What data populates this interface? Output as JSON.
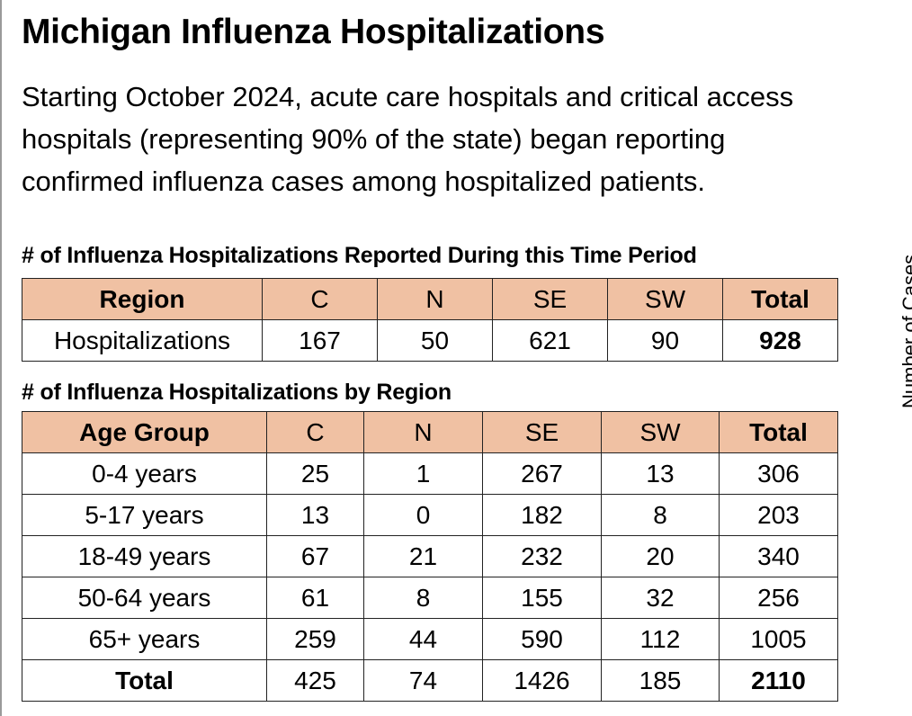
{
  "title": "Michigan Influenza Hospitalizations",
  "intro": [
    "Starting October 2024, acute care hospitals and critical access",
    "hospitals (representing 90% of the state) began reporting",
    "confirmed influenza cases among hospitalized patients."
  ],
  "side_label": "Number of Cases",
  "table1": {
    "caption": "# of Influenza Hospitalizations Reported During this Time Period",
    "headers": [
      "Region",
      "C",
      "N",
      "SE",
      "SW",
      "Total"
    ],
    "row": [
      "Hospitalizations",
      "167",
      "50",
      "621",
      "90",
      "928"
    ]
  },
  "table2": {
    "caption": "# of Influenza Hospitalizations by Region",
    "headers": [
      "Age Group",
      "C",
      "N",
      "SE",
      "SW",
      "Total"
    ],
    "rows": [
      [
        "0-4 years",
        "25",
        "1",
        "267",
        "13",
        "306"
      ],
      [
        "5-17 years",
        "13",
        "0",
        "182",
        "8",
        "203"
      ],
      [
        "18-49 years",
        "67",
        "21",
        "232",
        "20",
        "340"
      ],
      [
        "50-64 years",
        "61",
        "8",
        "155",
        "32",
        "256"
      ],
      [
        "65+ years",
        "259",
        "44",
        "590",
        "112",
        "1005"
      ],
      [
        "Total",
        "425",
        "74",
        "1426",
        "185",
        "2110"
      ]
    ]
  },
  "colors": {
    "header_fill": "#f0c1a3"
  }
}
